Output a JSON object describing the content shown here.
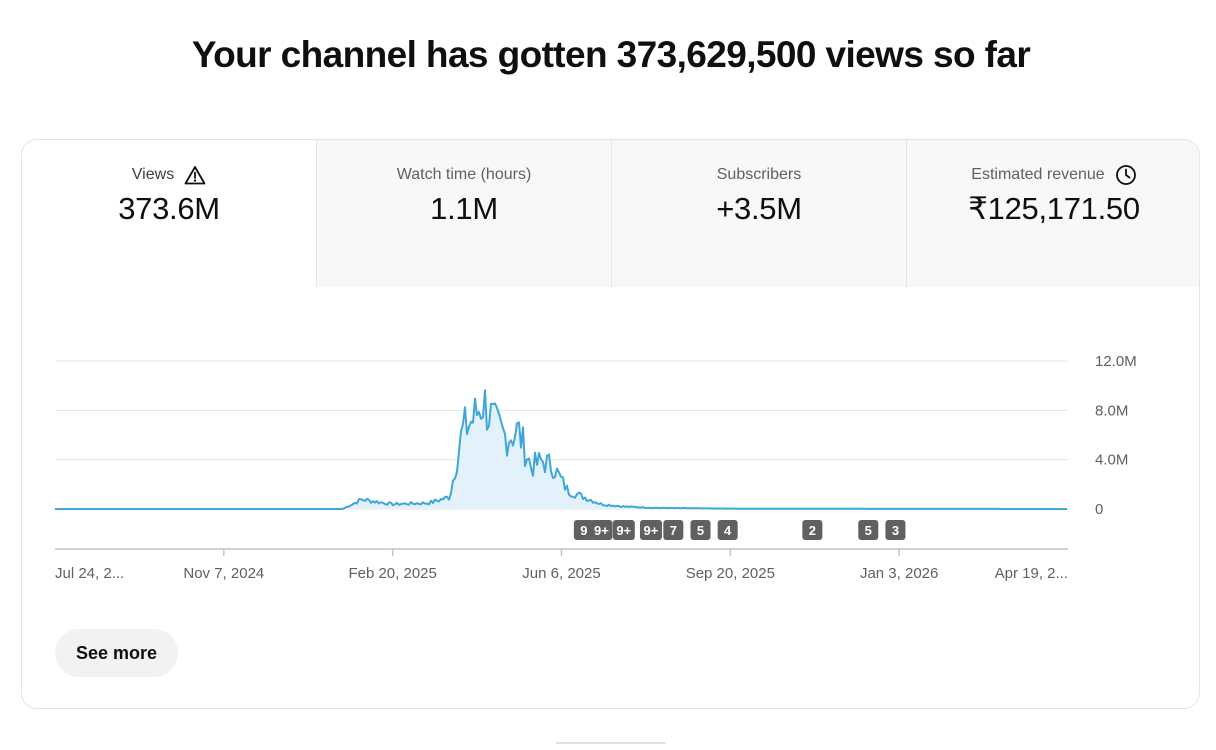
{
  "headline": "Your channel has gotten 373,629,500 views so far",
  "tabs": [
    {
      "label": "Views",
      "value": "373.6M",
      "icon": "warning-icon",
      "active": true
    },
    {
      "label": "Watch time (hours)",
      "value": "1.1M",
      "icon": "",
      "active": false
    },
    {
      "label": "Subscribers",
      "value": "+3.5M",
      "icon": "",
      "active": false
    },
    {
      "label": "Estimated revenue",
      "value": "₹125,171.50",
      "icon": "clock-icon",
      "active": false
    }
  ],
  "chart_data": {
    "type": "area",
    "series": [
      {
        "x": [
          "2024-07-24",
          "2024-11-07",
          "2025-01-20",
          "2025-02-01",
          "2025-02-20",
          "2025-03-15",
          "2025-03-28",
          "2025-04-05",
          "2025-04-12",
          "2025-04-18",
          "2025-04-25",
          "2025-05-02",
          "2025-05-10",
          "2025-05-18",
          "2025-05-25",
          "2025-06-01",
          "2025-06-10",
          "2025-06-20",
          "2025-07-01",
          "2025-07-15",
          "2025-08-01",
          "2025-09-01",
          "2025-10-01",
          "2026-01-03",
          "2026-04-19"
        ],
        "values": [
          0,
          0,
          0,
          0.8,
          0.4,
          0.5,
          1.0,
          6.5,
          7.5,
          9.0,
          7.0,
          6.0,
          6.5,
          3.5,
          4.0,
          3.5,
          1.5,
          1.0,
          0.4,
          0.2,
          0.1,
          0.05,
          0.02,
          0.01,
          0
        ]
      }
    ],
    "ylim": [
      0,
      12
    ],
    "yticks": [
      "12.0M",
      "8.0M",
      "4.0M",
      "0"
    ],
    "xticks": [
      "Jul 24, 2...",
      "Nov 7, 2024",
      "Feb 20, 2025",
      "Jun 6, 2025",
      "Sep 20, 2025",
      "Jan 3, 2026",
      "Apr 19, 2..."
    ],
    "x_range": [
      "2024-07-24",
      "2026-04-19"
    ],
    "grid": true,
    "markers": [
      {
        "date": "2025-06-20",
        "label": "9"
      },
      {
        "date": "2025-07-01",
        "label": "9+"
      },
      {
        "date": "2025-07-15",
        "label": "9+"
      },
      {
        "date": "2025-08-01",
        "label": "9+"
      },
      {
        "date": "2025-08-15",
        "label": "7"
      },
      {
        "date": "2025-09-01",
        "label": "5"
      },
      {
        "date": "2025-09-18",
        "label": "4"
      },
      {
        "date": "2025-11-10",
        "label": "2"
      },
      {
        "date": "2025-12-15",
        "label": "5"
      },
      {
        "date": "2026-01-01",
        "label": "3"
      }
    ],
    "line_color": "#3ea6d8",
    "fill_color": "#e3f2fa",
    "marker_color": "#606060"
  },
  "see_more_label": "See more"
}
